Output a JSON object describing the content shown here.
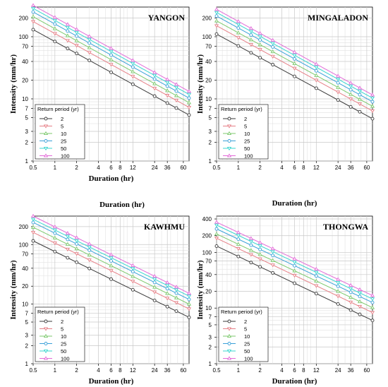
{
  "colors": {
    "2": "#3a3a3a",
    "5": "#e67f86",
    "10": "#7cc96d",
    "25": "#3aa0d8",
    "50": "#39d5cf",
    "100": "#e36ad8"
  },
  "chart_data": [
    {
      "type": "line",
      "title": "YANGON",
      "xlabel": "Duration (hr)",
      "ylabel": "Intensity (mm/hr)",
      "log_x": true,
      "log_y": true,
      "xlim": [
        0.5,
        72
      ],
      "ylim": [
        1,
        300
      ],
      "x_ticks": [
        0.5,
        1,
        2,
        4,
        6,
        8,
        12,
        24,
        36,
        60
      ],
      "y_ticks": [
        1,
        2,
        3,
        5,
        7,
        10,
        20,
        40,
        70,
        100,
        200
      ],
      "x": [
        0.5,
        1,
        1.5,
        2,
        3,
        6,
        12,
        24,
        36,
        48,
        72
      ],
      "legend_title": "Return period (yr)",
      "legend_position": "bottom-left",
      "series": [
        {
          "name": "2",
          "y0": 130,
          "y1": 5.5
        },
        {
          "name": "5",
          "y0": 175,
          "y1": 7.3
        },
        {
          "name": "10",
          "y0": 210,
          "y1": 8.7
        },
        {
          "name": "25",
          "y0": 250,
          "y1": 10.3
        },
        {
          "name": "50",
          "y0": 285,
          "y1": 11.8
        },
        {
          "name": "100",
          "y0": 320,
          "y1": 13.2
        }
      ]
    },
    {
      "type": "line",
      "title": "MINGALADON",
      "xlabel": "Duration (hr)",
      "ylabel": "Intensity (mm/hr)",
      "log_x": true,
      "log_y": true,
      "xlim": [
        0.5,
        72
      ],
      "ylim": [
        1,
        300
      ],
      "x_ticks": [
        0.5,
        1,
        2,
        4,
        6,
        8,
        12,
        24,
        36,
        60
      ],
      "y_ticks": [
        1,
        2,
        3,
        5,
        7,
        10,
        20,
        40,
        70,
        100,
        200
      ],
      "x": [
        0.5,
        1,
        1.5,
        2,
        3,
        6,
        12,
        24,
        36,
        48,
        72
      ],
      "legend_title": "Return period (yr)",
      "legend_position": "bottom-left",
      "series": [
        {
          "name": "2",
          "y0": 110,
          "y1": 4.8
        },
        {
          "name": "5",
          "y0": 150,
          "y1": 6.4
        },
        {
          "name": "10",
          "y0": 180,
          "y1": 7.6
        },
        {
          "name": "25",
          "y0": 215,
          "y1": 9.0
        },
        {
          "name": "50",
          "y0": 245,
          "y1": 10.3
        },
        {
          "name": "100",
          "y0": 275,
          "y1": 11.6
        }
      ]
    },
    {
      "type": "line",
      "title": "KAWHMU",
      "xlabel": "Duration (hr)",
      "ylabel": "Intensity (mm/hr)",
      "log_x": true,
      "log_y": true,
      "xlim": [
        0.5,
        72
      ],
      "ylim": [
        1,
        300
      ],
      "x_ticks": [
        0.5,
        1,
        2,
        4,
        6,
        8,
        12,
        24,
        36,
        60
      ],
      "y_ticks": [
        1,
        2,
        3,
        5,
        7,
        10,
        20,
        40,
        70,
        100,
        200
      ],
      "x": [
        0.5,
        1,
        1.5,
        2,
        3,
        6,
        12,
        24,
        36,
        48,
        72
      ],
      "legend_title": "Return period (yr)",
      "legend_position": "bottom-left",
      "series": [
        {
          "name": "2",
          "y0": 115,
          "y1": 6.0
        },
        {
          "name": "5",
          "y0": 160,
          "y1": 8.3
        },
        {
          "name": "10",
          "y0": 195,
          "y1": 10.0
        },
        {
          "name": "25",
          "y0": 235,
          "y1": 12.0
        },
        {
          "name": "50",
          "y0": 265,
          "y1": 13.6
        },
        {
          "name": "100",
          "y0": 300,
          "y1": 15.2
        }
      ]
    },
    {
      "type": "line",
      "title": "THONGWA",
      "xlabel": "Duration (hr)",
      "ylabel": "Intensity (mm/hr)",
      "log_x": true,
      "log_y": true,
      "xlim": [
        0.5,
        72
      ],
      "ylim": [
        1,
        450
      ],
      "x_ticks": [
        0.5,
        1,
        2,
        4,
        6,
        8,
        12,
        24,
        36,
        60
      ],
      "y_ticks": [
        1,
        2,
        3,
        5,
        7,
        10,
        20,
        40,
        70,
        100,
        200,
        400
      ],
      "x": [
        0.5,
        1,
        1.5,
        2,
        3,
        6,
        12,
        24,
        36,
        48,
        72
      ],
      "legend_title": "Return period (yr)",
      "legend_position": "bottom-left",
      "series": [
        {
          "name": "2",
          "y0": 130,
          "y1": 6.0
        },
        {
          "name": "5",
          "y0": 180,
          "y1": 8.3
        },
        {
          "name": "10",
          "y0": 215,
          "y1": 10.2
        },
        {
          "name": "25",
          "y0": 265,
          "y1": 12.6
        },
        {
          "name": "50",
          "y0": 310,
          "y1": 14.6
        },
        {
          "name": "100",
          "y0": 350,
          "y1": 16.8
        }
      ]
    }
  ],
  "standalone_label": "Duration (hr)"
}
